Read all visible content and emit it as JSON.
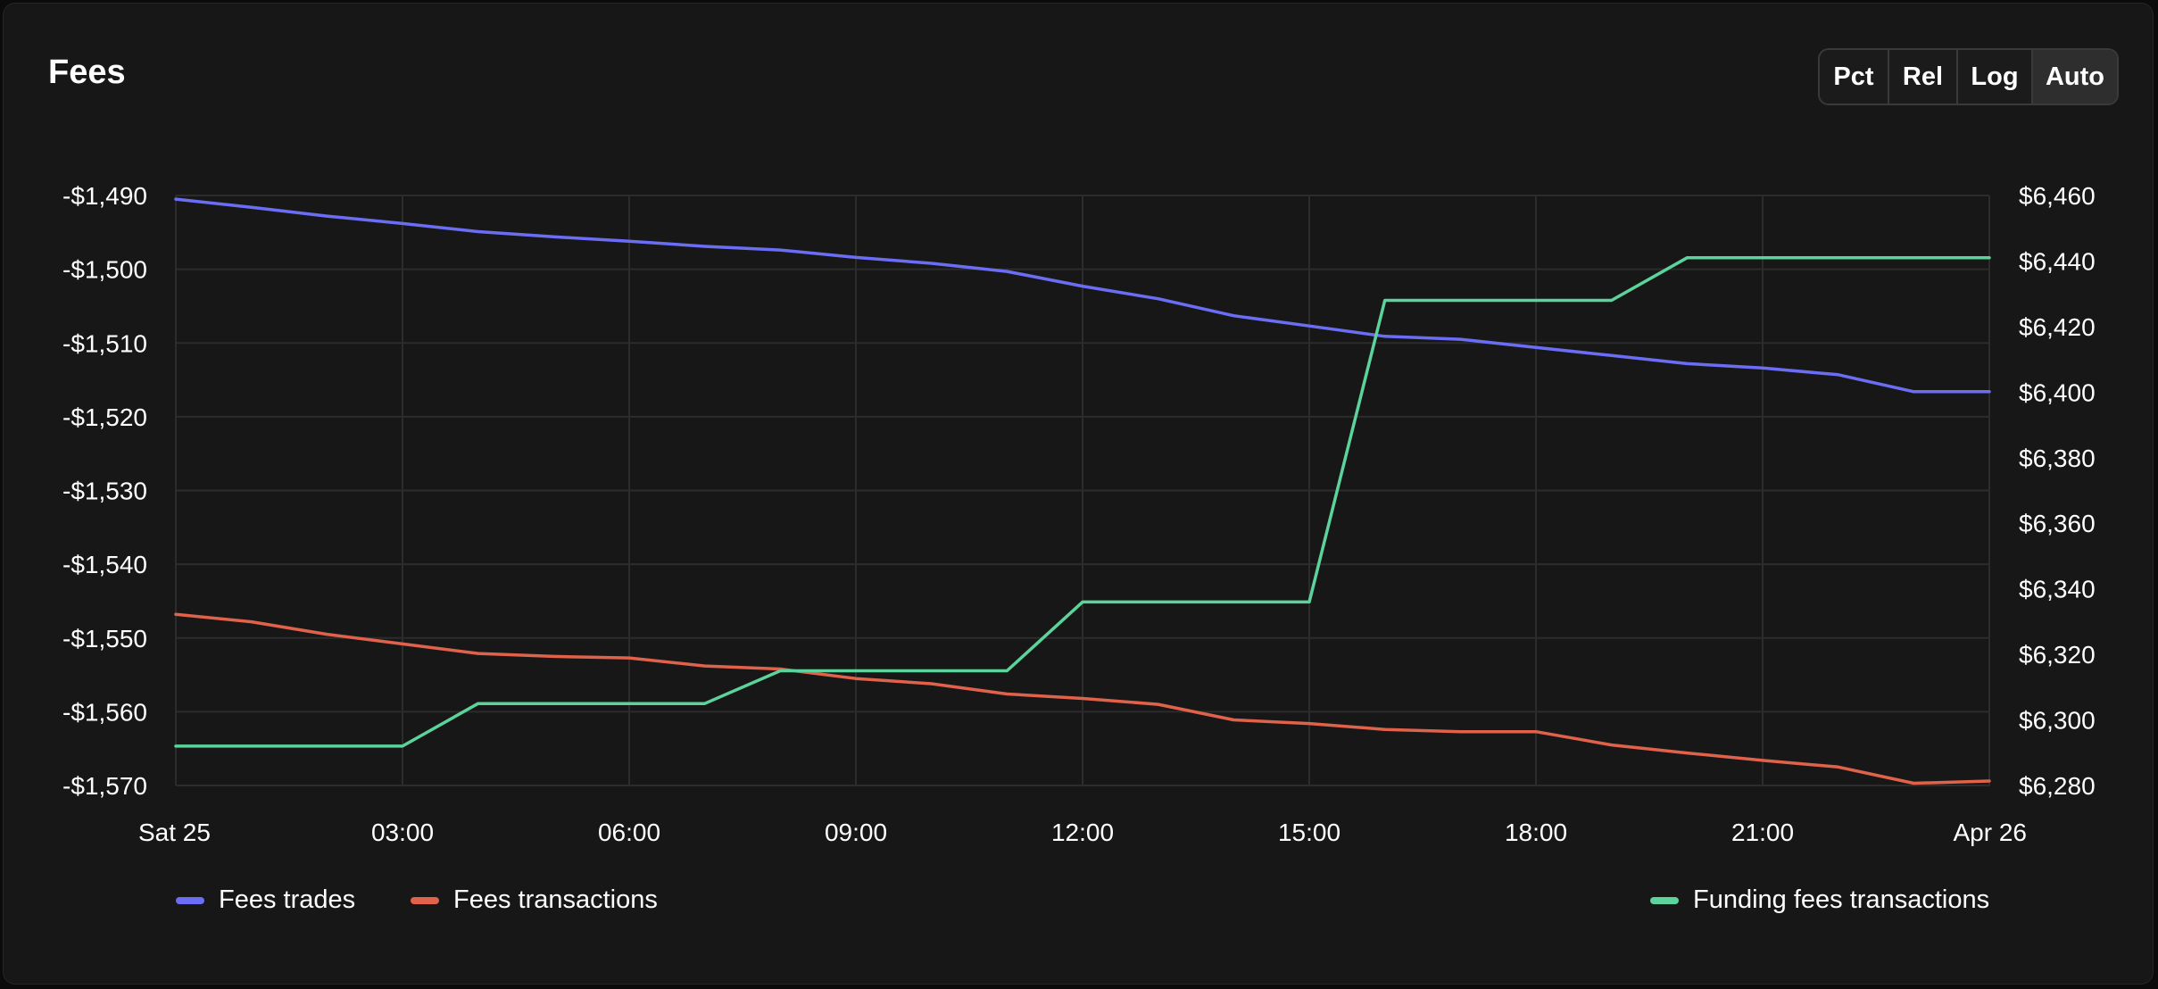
{
  "title": "Fees",
  "scale_buttons": [
    {
      "label": "Pct",
      "active": false
    },
    {
      "label": "Rel",
      "active": false
    },
    {
      "label": "Log",
      "active": false
    },
    {
      "label": "Auto",
      "active": true
    }
  ],
  "chart_data": {
    "type": "line",
    "x_ticks": [
      "Sat 25",
      "03:00",
      "06:00",
      "09:00",
      "12:00",
      "15:00",
      "18:00",
      "21:00",
      "Apr 26"
    ],
    "x_hours": [
      0,
      1,
      2,
      3,
      4,
      5,
      6,
      7,
      8,
      9,
      10,
      11,
      12,
      13,
      14,
      15,
      16,
      17,
      18,
      19,
      20,
      21,
      22,
      23,
      24
    ],
    "x_range_hours": [
      0,
      24
    ],
    "y_left": {
      "ticks": [
        "-$1,490",
        "-$1,500",
        "-$1,510",
        "-$1,520",
        "-$1,530",
        "-$1,540",
        "-$1,550",
        "-$1,560",
        "-$1,570"
      ],
      "range": [
        -1570,
        -1490
      ]
    },
    "y_right": {
      "ticks": [
        "$6,460",
        "$6,440",
        "$6,420",
        "$6,400",
        "$6,380",
        "$6,360",
        "$6,340",
        "$6,320",
        "$6,300",
        "$6,280"
      ],
      "range": [
        6280,
        6460
      ]
    },
    "grid": true,
    "legend_placement": "bottom",
    "series": [
      {
        "name": "Fees trades",
        "axis": "left",
        "color": "#6b6ef5",
        "values": [
          -1490.5,
          -1491.6,
          -1492.8,
          -1493.8,
          -1494.9,
          -1495.6,
          -1496.2,
          -1496.9,
          -1497.4,
          -1498.4,
          -1499.2,
          -1500.3,
          -1502.3,
          -1504.0,
          -1506.3,
          -1507.7,
          -1509.1,
          -1509.5,
          -1510.6,
          -1511.7,
          -1512.8,
          -1513.4,
          -1514.3,
          -1516.6,
          -1516.6
        ]
      },
      {
        "name": "Fees transactions",
        "axis": "left",
        "color": "#e0624a",
        "values": [
          -1546.8,
          -1547.8,
          -1549.5,
          -1550.8,
          -1552.1,
          -1552.5,
          -1552.7,
          -1553.8,
          -1554.2,
          -1555.5,
          -1556.2,
          -1557.6,
          -1558.2,
          -1559.0,
          -1561.1,
          -1561.6,
          -1562.4,
          -1562.7,
          -1562.7,
          -1564.5,
          -1565.6,
          -1566.6,
          -1567.5,
          -1569.7,
          -1569.4
        ]
      },
      {
        "name": "Funding fees transactions",
        "axis": "right",
        "color": "#5bd39a",
        "values": [
          6292,
          6292,
          6292,
          6292,
          6305,
          6305,
          6305,
          6305,
          6315,
          6315,
          6315,
          6315,
          6336,
          6336,
          6336,
          6336,
          6428,
          6428,
          6428,
          6428,
          6441,
          6441,
          6441,
          6441,
          6441
        ]
      }
    ]
  }
}
